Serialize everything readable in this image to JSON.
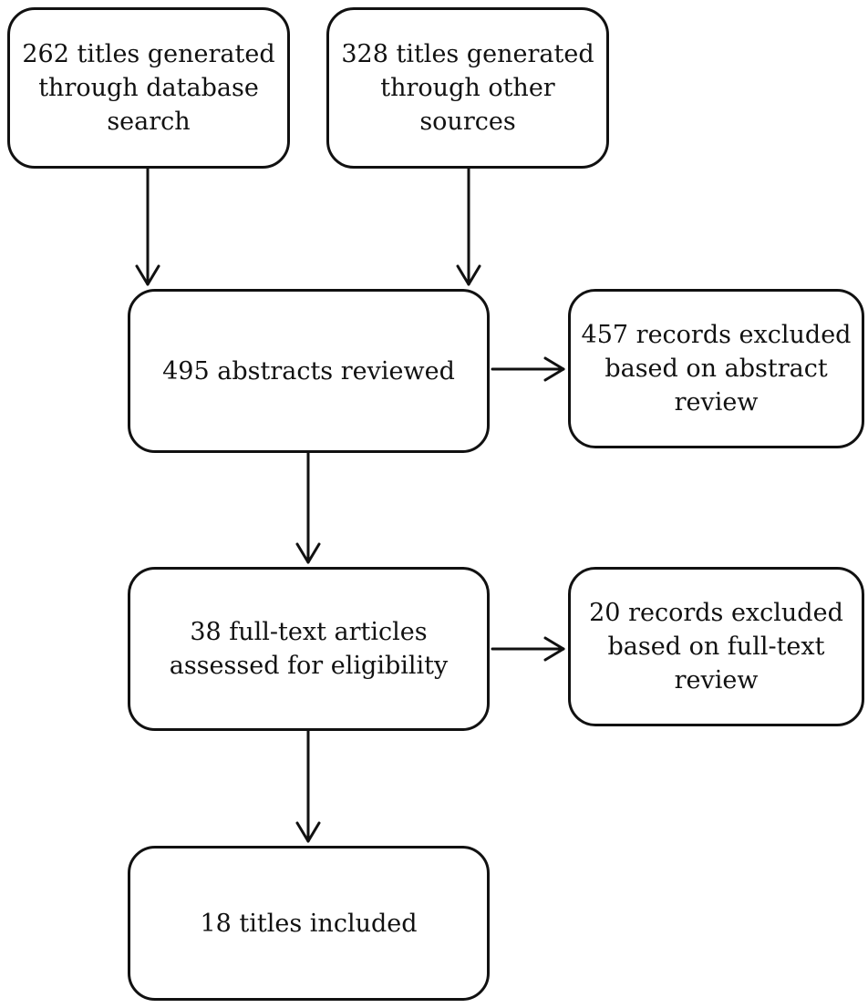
{
  "flow": {
    "database_search": {
      "lines": [
        "262 titles generated",
        "through database",
        "search"
      ]
    },
    "other_sources": {
      "lines": [
        "328 titles generated",
        "through other",
        "sources"
      ]
    },
    "abstracts_reviewed": {
      "lines": [
        "495 abstracts reviewed"
      ]
    },
    "abstract_exclusions": {
      "lines": [
        "457 records excluded",
        "based on abstract",
        "review"
      ]
    },
    "full_text_assessed": {
      "lines": [
        "38 full-text articles",
        "assessed for eligibility"
      ]
    },
    "full_text_exclusions": {
      "lines": [
        "20 records excluded",
        "based on full-text",
        "review"
      ]
    },
    "included": {
      "lines": [
        "18 titles included"
      ]
    }
  },
  "colors": {
    "stroke": "#111111",
    "background": "#ffffff"
  }
}
